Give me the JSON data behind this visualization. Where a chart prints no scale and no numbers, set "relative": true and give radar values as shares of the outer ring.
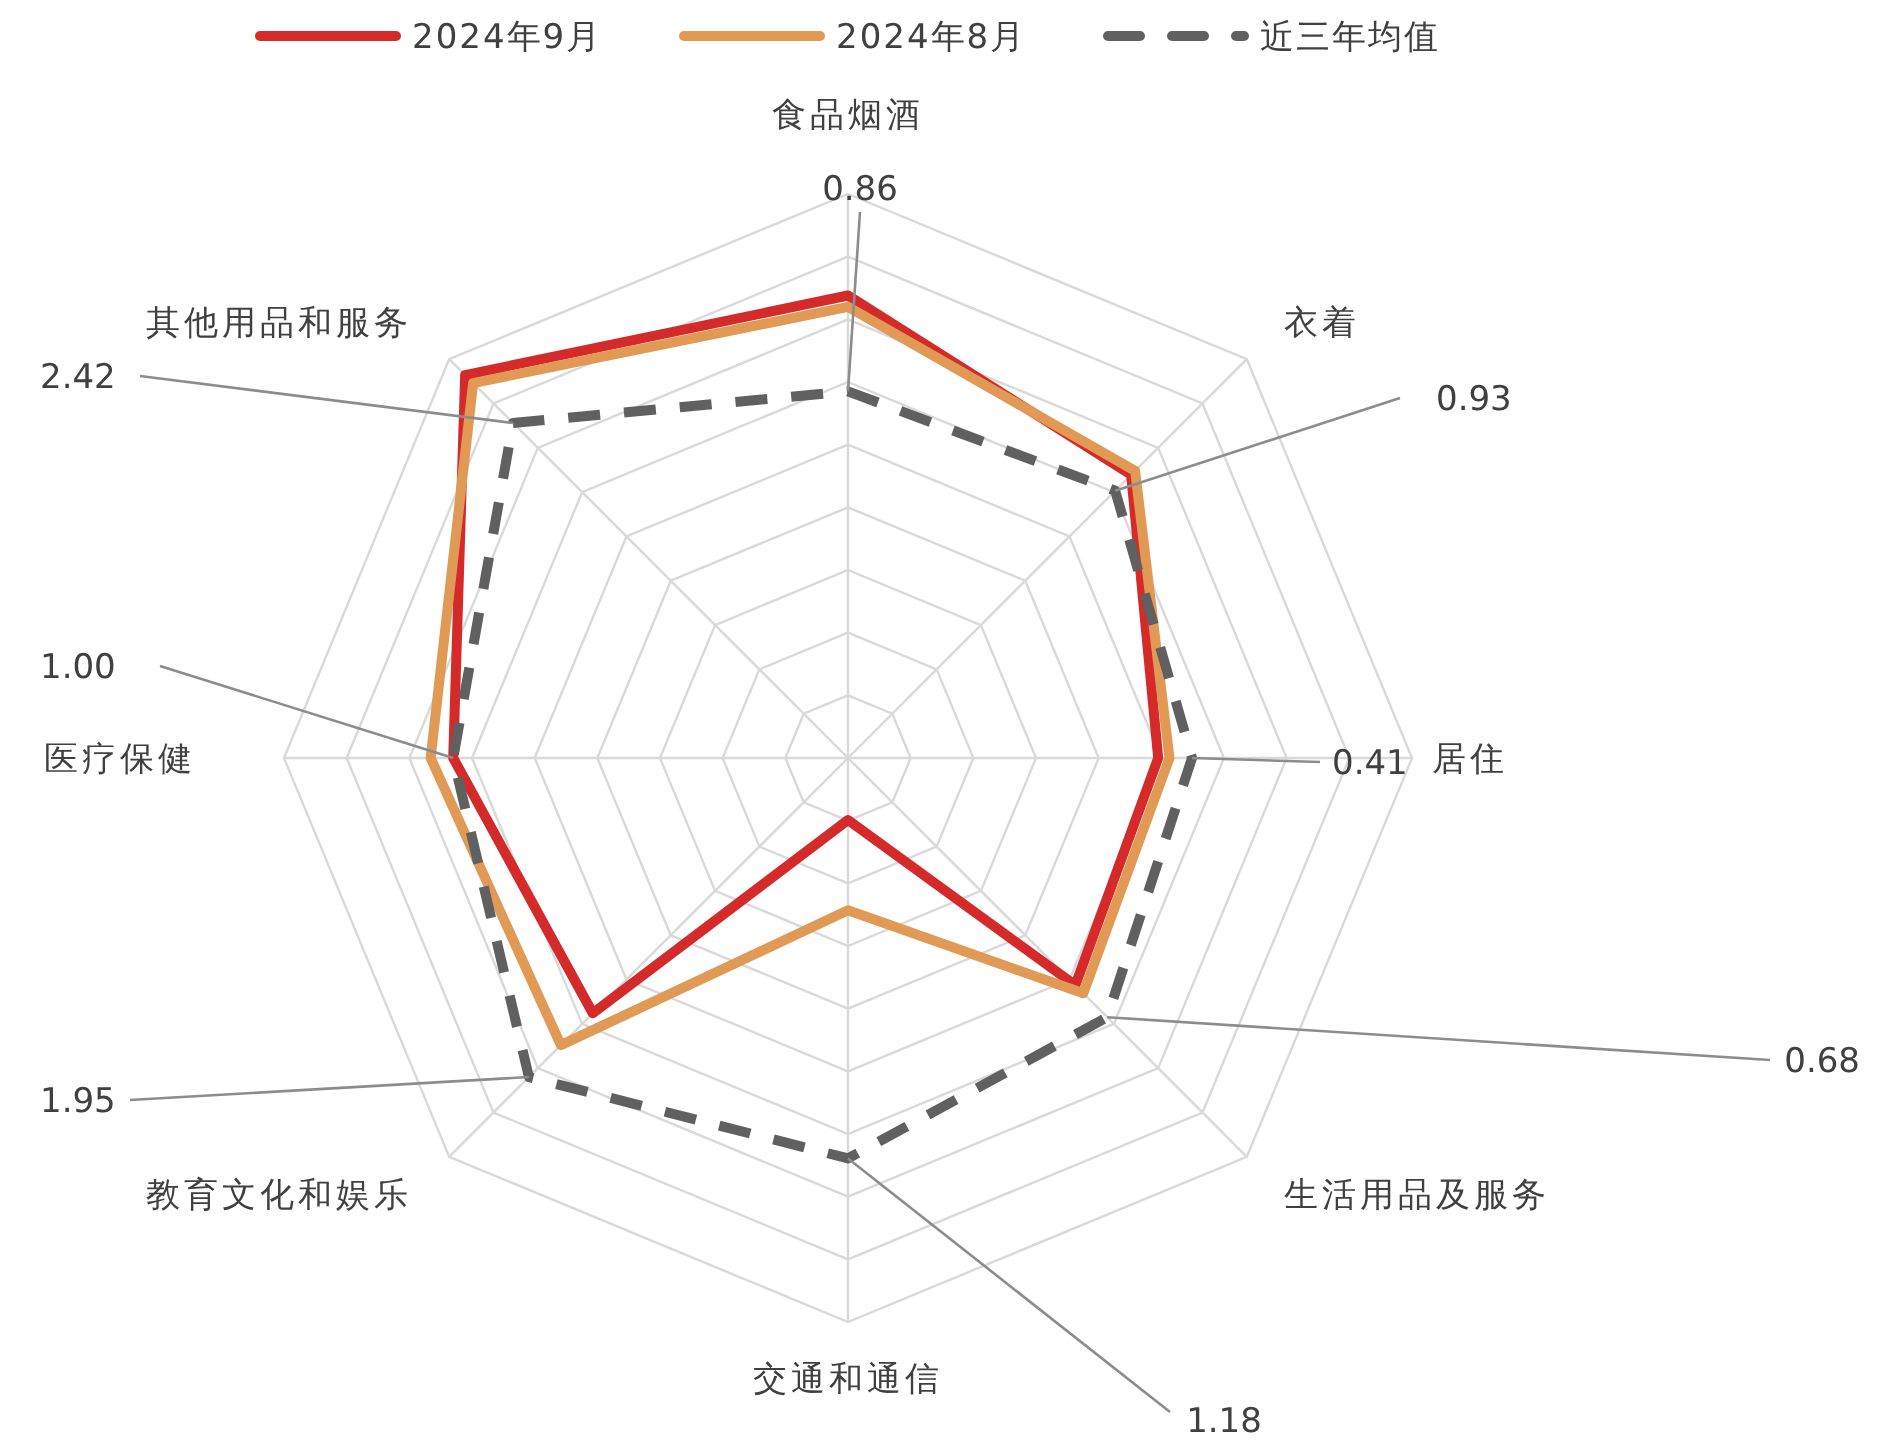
{
  "chart_data": {
    "type": "radar",
    "relative": true,
    "categories": [
      "食品烟酒",
      "衣着",
      "居住",
      "生活用品及服务",
      "交通和通信",
      "教育文化和娱乐",
      "医疗保健",
      "其他用品和服务"
    ],
    "series": [
      {
        "name": "2024年9月",
        "color": "#d42a2a",
        "line_style": "solid",
        "values": [
          0.82,
          0.71,
          0.55,
          0.57,
          0.11,
          0.64,
          0.7,
          0.96
        ]
      },
      {
        "name": "2024年8月",
        "color": "#e09a55",
        "line_style": "solid",
        "values": [
          0.8,
          0.72,
          0.57,
          0.59,
          0.27,
          0.72,
          0.74,
          0.94
        ]
      },
      {
        "name": "近三年均值",
        "color": "#606060",
        "line_style": "dashed",
        "values": [
          0.65,
          0.67,
          0.61,
          0.65,
          0.71,
          0.8,
          0.7,
          0.84
        ]
      }
    ],
    "annotations": [
      {
        "text": "0.86",
        "x": "食品烟酒"
      },
      {
        "text": "0.93",
        "x": "衣着"
      },
      {
        "text": "0.41",
        "x": "居住"
      },
      {
        "text": "0.68",
        "x": "生活用品及服务"
      },
      {
        "text": "1.18",
        "x": "交通和通信"
      },
      {
        "text": "1.95",
        "x": "教育文化和娱乐"
      },
      {
        "text": "1.00",
        "x": "医疗保健"
      },
      {
        "text": "2.42",
        "x": "其他用品和服务"
      }
    ],
    "grid": true,
    "legend": "top",
    "marker": "none"
  }
}
